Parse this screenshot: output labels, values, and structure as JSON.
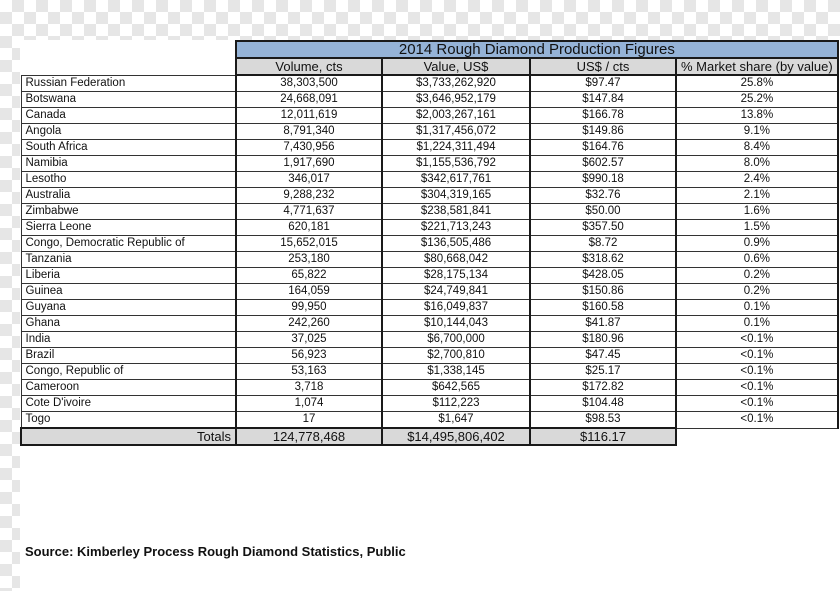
{
  "title": "2014 Rough Diamond Production Figures",
  "headers": {
    "volume": "Volume, cts",
    "value": "Value, US$",
    "usd_per_ct": "US$ / cts",
    "market_share": "% Market share (by value)"
  },
  "rows": [
    {
      "country": "Russian Federation",
      "volume": "38,303,500",
      "value": "$3,733,262,920",
      "usd_per_ct": "$97.47",
      "share": "25.8%"
    },
    {
      "country": "Botswana",
      "volume": "24,668,091",
      "value": "$3,646,952,179",
      "usd_per_ct": "$147.84",
      "share": "25.2%"
    },
    {
      "country": "Canada",
      "volume": "12,011,619",
      "value": "$2,003,267,161",
      "usd_per_ct": "$166.78",
      "share": "13.8%"
    },
    {
      "country": "Angola",
      "volume": "8,791,340",
      "value": "$1,317,456,072",
      "usd_per_ct": "$149.86",
      "share": "9.1%"
    },
    {
      "country": "South Africa",
      "volume": "7,430,956",
      "value": "$1,224,311,494",
      "usd_per_ct": "$164.76",
      "share": "8.4%"
    },
    {
      "country": "Namibia",
      "volume": "1,917,690",
      "value": "$1,155,536,792",
      "usd_per_ct": "$602.57",
      "share": "8.0%"
    },
    {
      "country": "Lesotho",
      "volume": "346,017",
      "value": "$342,617,761",
      "usd_per_ct": "$990.18",
      "share": "2.4%"
    },
    {
      "country": "Australia",
      "volume": "9,288,232",
      "value": "$304,319,165",
      "usd_per_ct": "$32.76",
      "share": "2.1%"
    },
    {
      "country": "Zimbabwe",
      "volume": "4,771,637",
      "value": "$238,581,841",
      "usd_per_ct": "$50.00",
      "share": "1.6%"
    },
    {
      "country": "Sierra Leone",
      "volume": "620,181",
      "value": "$221,713,243",
      "usd_per_ct": "$357.50",
      "share": "1.5%"
    },
    {
      "country": "Congo, Democratic Republic of",
      "volume": "15,652,015",
      "value": "$136,505,486",
      "usd_per_ct": "$8.72",
      "share": "0.9%"
    },
    {
      "country": "Tanzania",
      "volume": "253,180",
      "value": "$80,668,042",
      "usd_per_ct": "$318.62",
      "share": "0.6%"
    },
    {
      "country": "Liberia",
      "volume": "65,822",
      "value": "$28,175,134",
      "usd_per_ct": "$428.05",
      "share": "0.2%"
    },
    {
      "country": "Guinea",
      "volume": "164,059",
      "value": "$24,749,841",
      "usd_per_ct": "$150.86",
      "share": "0.2%"
    },
    {
      "country": "Guyana",
      "volume": "99,950",
      "value": "$16,049,837",
      "usd_per_ct": "$160.58",
      "share": "0.1%"
    },
    {
      "country": "Ghana",
      "volume": "242,260",
      "value": "$10,144,043",
      "usd_per_ct": "$41.87",
      "share": "0.1%"
    },
    {
      "country": "India",
      "volume": "37,025",
      "value": "$6,700,000",
      "usd_per_ct": "$180.96",
      "share": "<0.1%"
    },
    {
      "country": "Brazil",
      "volume": "56,923",
      "value": "$2,700,810",
      "usd_per_ct": "$47.45",
      "share": "<0.1%"
    },
    {
      "country": "Congo, Republic of",
      "volume": "53,163",
      "value": "$1,338,145",
      "usd_per_ct": "$25.17",
      "share": "<0.1%"
    },
    {
      "country": "Cameroon",
      "volume": "3,718",
      "value": "$642,565",
      "usd_per_ct": "$172.82",
      "share": "<0.1%"
    },
    {
      "country": "Cote D'ivoire",
      "volume": "1,074",
      "value": "$112,223",
      "usd_per_ct": "$104.48",
      "share": "<0.1%"
    },
    {
      "country": "Togo",
      "volume": "17",
      "value": "$1,647",
      "usd_per_ct": "$98.53",
      "share": "<0.1%"
    }
  ],
  "totals": {
    "label": "Totals",
    "volume": "124,778,468",
    "value": "$14,495,806,402",
    "usd_per_ct": "$116.17"
  },
  "source": "Source:  Kimberley Process Rough Diamond Statistics, Public",
  "colors": {
    "title_bg": "#95b3d7",
    "header_bg": "#d9d9d9",
    "totals_bg": "#d9d9d9"
  }
}
